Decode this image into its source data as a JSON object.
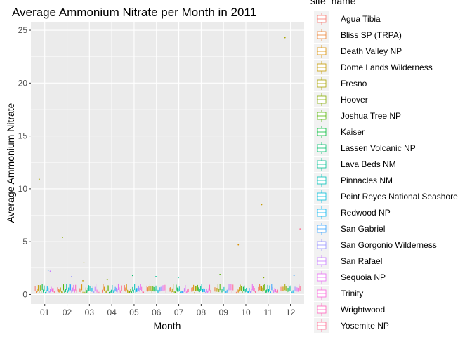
{
  "chart_data": {
    "type": "boxplot",
    "title": "Average Ammonium Nitrate per Month in 2011",
    "xlabel": "Month",
    "ylabel": "Average Ammonium Nitrate",
    "categories": [
      "01",
      "02",
      "03",
      "04",
      "05",
      "06",
      "07",
      "08",
      "09",
      "10",
      "11",
      "12"
    ],
    "ylim": [
      -0.9,
      25.8
    ],
    "yticks": [
      0,
      5,
      10,
      15,
      20,
      25
    ],
    "grid": true,
    "legend": {
      "title": "site_name",
      "position": "right",
      "entries": [
        {
          "name": "Agua Tibia",
          "color": "#F8766D"
        },
        {
          "name": "Bliss SP (TRPA)",
          "color": "#EB8335"
        },
        {
          "name": "Death Valley NP",
          "color": "#DA8F00"
        },
        {
          "name": "Dome Lands Wilderness",
          "color": "#C49A00"
        },
        {
          "name": "Fresno",
          "color": "#A9A400"
        },
        {
          "name": "Hoover",
          "color": "#86AC00"
        },
        {
          "name": "Joshua Tree NP",
          "color": "#53B400"
        },
        {
          "name": "Kaiser",
          "color": "#00BA38"
        },
        {
          "name": "Lassen Volcanic NP",
          "color": "#00BE6C"
        },
        {
          "name": "Lava Beds NM",
          "color": "#00C094"
        },
        {
          "name": "Pinnacles NM",
          "color": "#00C0B8"
        },
        {
          "name": "Point Reyes National Seashore",
          "color": "#00BCD8"
        },
        {
          "name": "Redwood NP",
          "color": "#00B4F0"
        },
        {
          "name": "San Gabriel",
          "color": "#35A2FF"
        },
        {
          "name": "San Gorgonio Wilderness",
          "color": "#9590FF"
        },
        {
          "name": "San Rafael",
          "color": "#C77CFF"
        },
        {
          "name": "Sequoia NP",
          "color": "#E76BF3"
        },
        {
          "name": "Trinity",
          "color": "#FA62DB"
        },
        {
          "name": "Wrightwood",
          "color": "#FF62BC"
        },
        {
          "name": "Yosemite NP",
          "color": "#FF6C91"
        }
      ]
    },
    "outliers": [
      {
        "month": "01",
        "site_index": 4,
        "value": 10.9
      },
      {
        "month": "01",
        "site_index": 13,
        "value": 2.3
      },
      {
        "month": "01",
        "site_index": 15,
        "value": 2.2
      },
      {
        "month": "02",
        "site_index": 5,
        "value": 5.4
      },
      {
        "month": "02",
        "site_index": 14,
        "value": 1.7
      },
      {
        "month": "03",
        "site_index": 4,
        "value": 3.0
      },
      {
        "month": "03",
        "site_index": 3,
        "value": 1.3
      },
      {
        "month": "04",
        "site_index": 5,
        "value": 1.4
      },
      {
        "month": "05",
        "site_index": 8,
        "value": 1.8
      },
      {
        "month": "06",
        "site_index": 9,
        "value": 1.7
      },
      {
        "month": "07",
        "site_index": 9,
        "value": 1.6
      },
      {
        "month": "09",
        "site_index": 6,
        "value": 1.9
      },
      {
        "month": "10",
        "site_index": 2,
        "value": 4.7
      },
      {
        "month": "11",
        "site_index": 3,
        "value": 8.5
      },
      {
        "month": "11",
        "site_index": 5,
        "value": 1.6
      },
      {
        "month": "12",
        "site_index": 4,
        "value": 24.3
      },
      {
        "month": "12",
        "site_index": 19,
        "value": 6.2
      },
      {
        "month": "12",
        "site_index": 13,
        "value": 1.8
      }
    ]
  }
}
